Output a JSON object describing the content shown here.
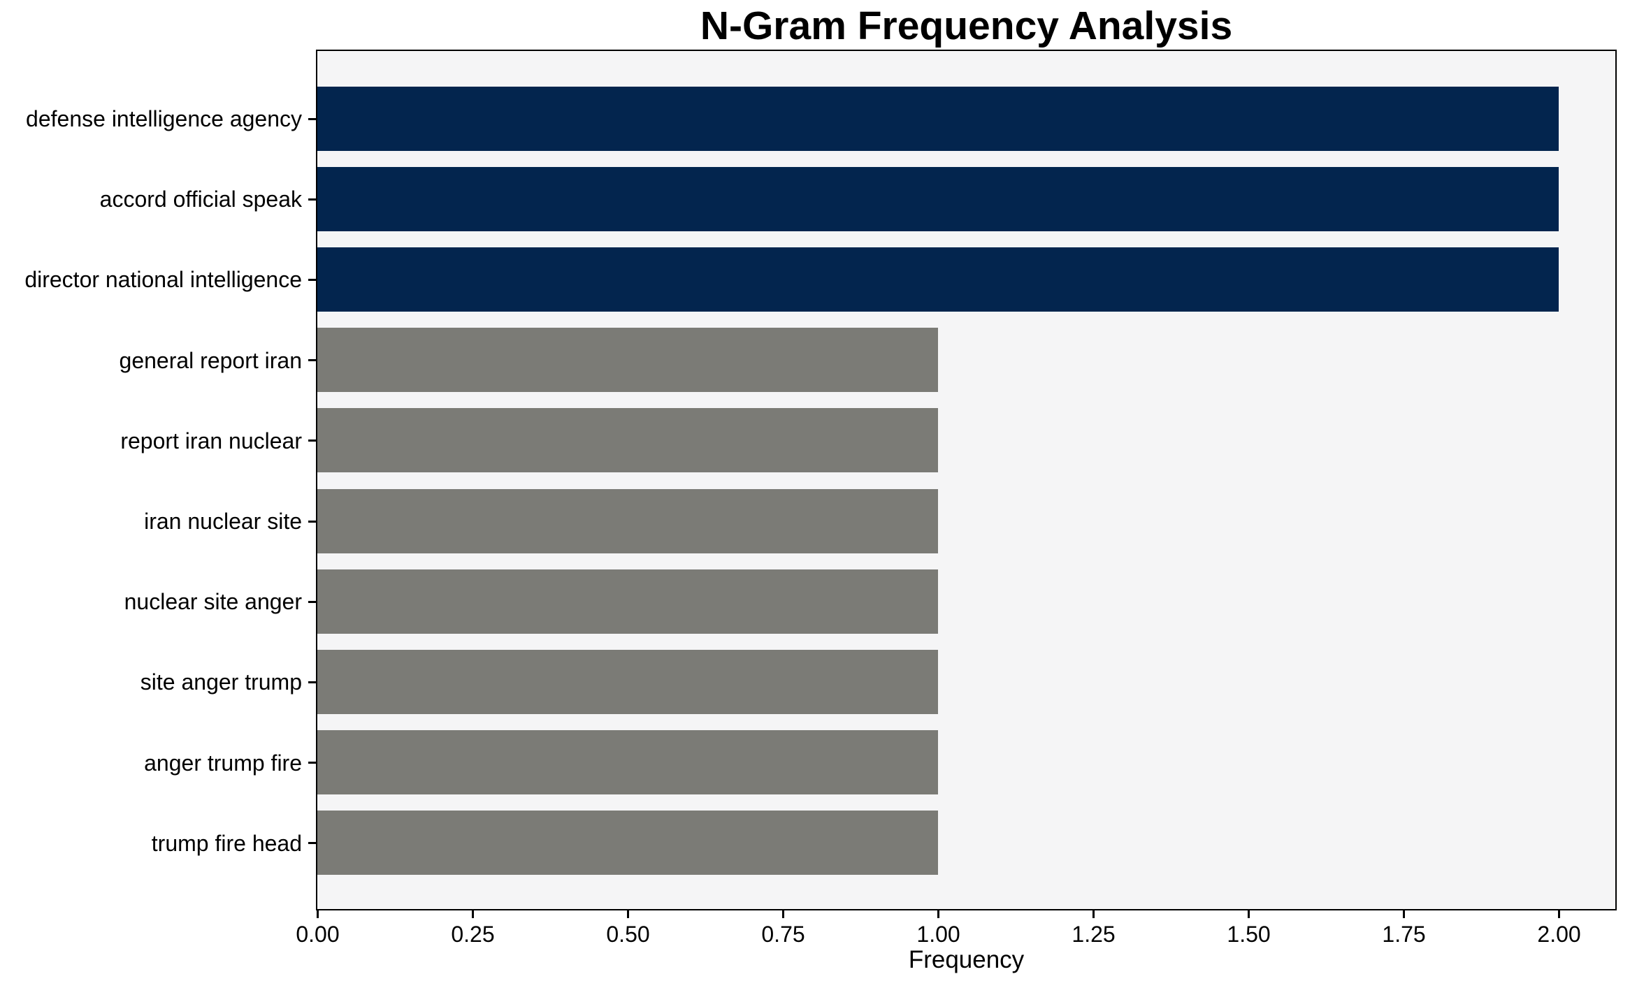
{
  "chart_data": {
    "type": "bar",
    "orientation": "horizontal",
    "title": "N-Gram Frequency Analysis",
    "xlabel": "Frequency",
    "ylabel": "",
    "categories": [
      "defense intelligence agency",
      "accord official speak",
      "director national intelligence",
      "general report iran",
      "report iran nuclear",
      "iran nuclear site",
      "nuclear site anger",
      "site anger trump",
      "anger trump fire",
      "trump fire head"
    ],
    "values": [
      2,
      2,
      2,
      1,
      1,
      1,
      1,
      1,
      1,
      1
    ],
    "bar_colors": [
      "#03254e",
      "#03254e",
      "#03254e",
      "#7b7b76",
      "#7b7b76",
      "#7b7b76",
      "#7b7b76",
      "#7b7b76",
      "#7b7b76",
      "#7b7b76"
    ],
    "x_ticks": [
      {
        "value": 0.0,
        "label": "0.00"
      },
      {
        "value": 0.25,
        "label": "0.25"
      },
      {
        "value": 0.5,
        "label": "0.50"
      },
      {
        "value": 0.75,
        "label": "0.75"
      },
      {
        "value": 1.0,
        "label": "1.00"
      },
      {
        "value": 1.25,
        "label": "1.25"
      },
      {
        "value": 1.5,
        "label": "1.50"
      },
      {
        "value": 1.75,
        "label": "1.75"
      },
      {
        "value": 2.0,
        "label": "2.00"
      }
    ],
    "xlim": [
      0,
      2.09
    ],
    "grid": false,
    "legend_position": "none",
    "colors": {
      "highlight_bar": "#03254e",
      "default_bar": "#7b7b76",
      "plot_background": "#f5f5f6",
      "figure_background": "#ffffff",
      "spine": "#000000",
      "text": "#000000"
    }
  }
}
